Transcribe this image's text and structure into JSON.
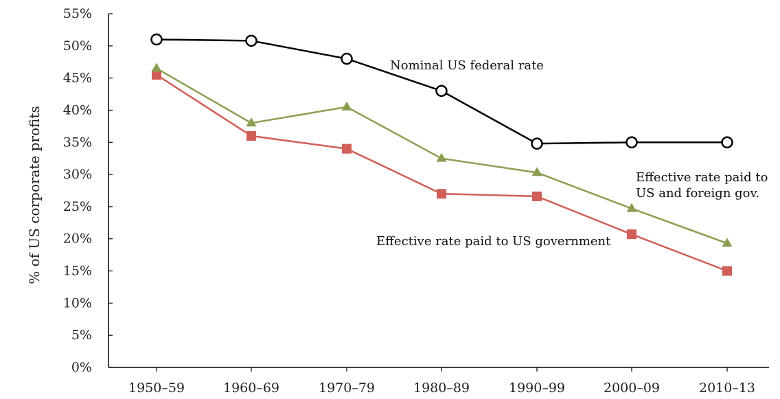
{
  "chart_data": {
    "type": "line",
    "ylabel": "% of US corporate profits",
    "xlabel": "",
    "ylim": [
      0,
      55
    ],
    "ytick_values": [
      0,
      5,
      10,
      15,
      20,
      25,
      30,
      35,
      40,
      45,
      50,
      55
    ],
    "ytick_labels": [
      "0%",
      "5%",
      "10%",
      "15%",
      "20%",
      "25%",
      "30%",
      "35%",
      "40%",
      "45%",
      "50%",
      "55%"
    ],
    "categories": [
      "1950–59",
      "1960–69",
      "1970–79",
      "1980–89",
      "1990–99",
      "2000–09",
      "2010–13"
    ],
    "grid": false,
    "series": [
      {
        "name": "Nominal US federal rate",
        "values": [
          51,
          50.8,
          48,
          43,
          34.8,
          35,
          35
        ],
        "color": "#000000",
        "marker": "open-circle"
      },
      {
        "name": "Effective rate paid to US and foreign gov.",
        "values": [
          46.5,
          38,
          40.5,
          32.5,
          30.3,
          24.7,
          19.3
        ],
        "color": "#8a9e51",
        "marker": "triangle"
      },
      {
        "name": "Effective rate paid to US government",
        "values": [
          45.5,
          36,
          34,
          27,
          26.6,
          20.7,
          15
        ],
        "color": "#d05f57",
        "marker": "square"
      }
    ],
    "annotations": [
      {
        "series": 0,
        "lines": [
          "Nominal US federal rate"
        ]
      },
      {
        "series": 1,
        "lines": [
          "Effective rate paid to",
          "US and foreign gov."
        ]
      },
      {
        "series": 2,
        "lines": [
          "Effective rate paid to US government"
        ]
      }
    ]
  }
}
